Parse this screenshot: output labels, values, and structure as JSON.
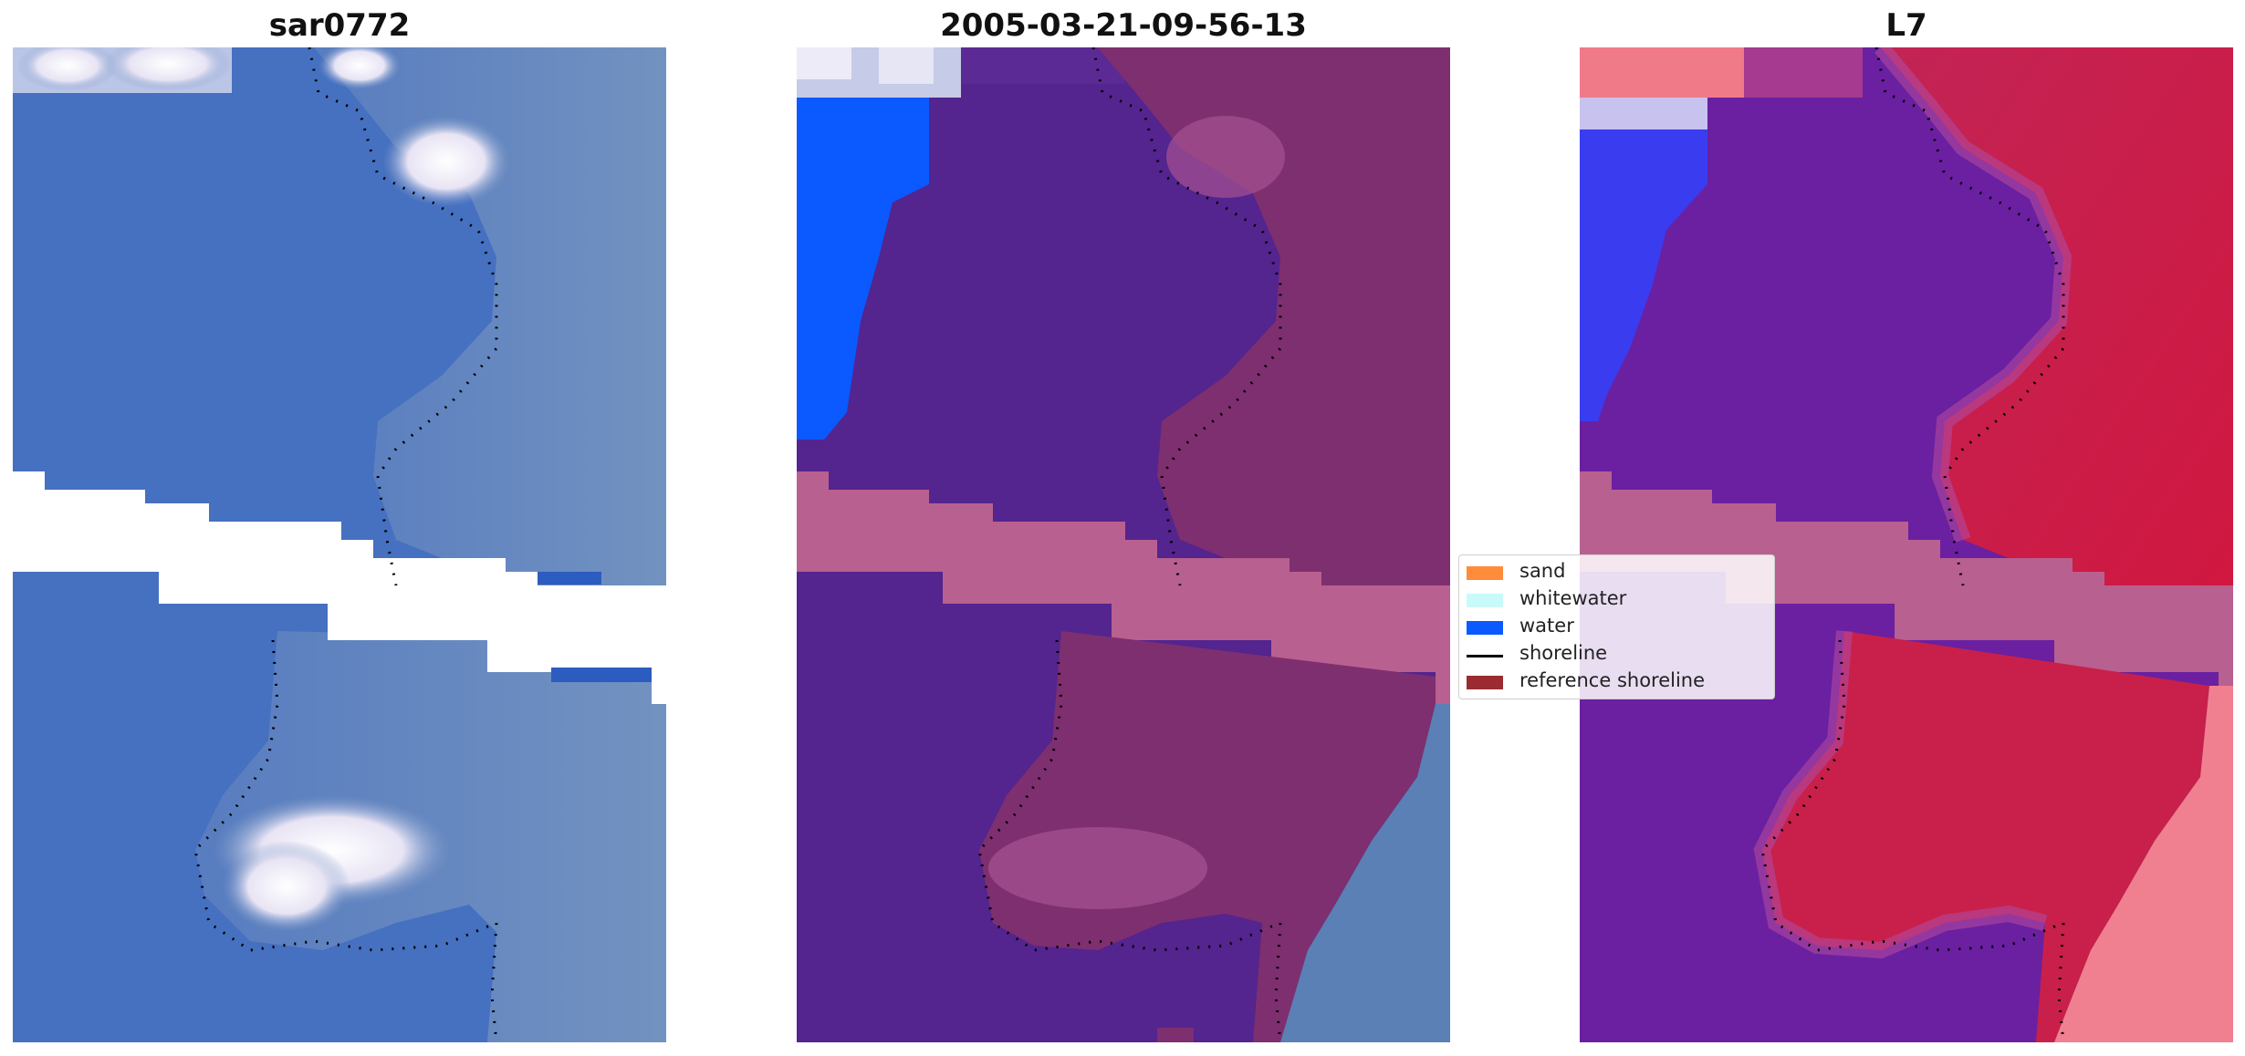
{
  "panels": [
    {
      "title": "sar0772"
    },
    {
      "title": "2005-03-21-09-56-13"
    },
    {
      "title": "L7"
    }
  ],
  "legend": {
    "items": [
      {
        "label": "sand",
        "color": "#ff8c3a"
      },
      {
        "label": "whitewater",
        "color": "#c8fafa"
      },
      {
        "label": "water",
        "color": "#0a5aff"
      },
      {
        "label": "shoreline",
        "color": "#000000"
      },
      {
        "label": "reference shoreline",
        "color": "#9b2b30"
      }
    ]
  },
  "colors": {
    "rgb_water": "#4670c0",
    "classified_water_purple": "#54248f",
    "sand_overlay": "#7e2f6f",
    "nodata_band": "#b8608f",
    "mndwi_red": "#c4204a",
    "mndwi_purple": "#6a20a0"
  }
}
